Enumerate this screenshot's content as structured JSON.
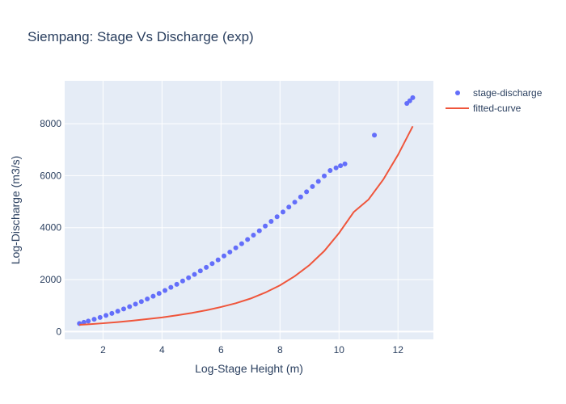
{
  "chart_data": {
    "type": "scatter",
    "title": "Siempang: Stage Vs Discharge (exp)",
    "xlabel": "Log-Stage Height (m)",
    "ylabel": "Log-Discharge (m3/s)",
    "xlim": [
      0.7,
      13.2
    ],
    "ylim": [
      -300,
      9650
    ],
    "xticks": [
      2,
      4,
      6,
      8,
      10,
      12
    ],
    "yticks": [
      0,
      2000,
      4000,
      6000,
      8000
    ],
    "grid": true,
    "legend_position": "top-right",
    "series": [
      {
        "name": "stage-discharge",
        "kind": "scatter",
        "color": "#636efa",
        "x": [
          1.2,
          1.35,
          1.5,
          1.7,
          1.9,
          2.1,
          2.3,
          2.5,
          2.7,
          2.9,
          3.1,
          3.3,
          3.5,
          3.7,
          3.9,
          4.1,
          4.3,
          4.5,
          4.7,
          4.9,
          5.1,
          5.3,
          5.5,
          5.7,
          5.9,
          6.1,
          6.3,
          6.5,
          6.7,
          6.9,
          7.1,
          7.3,
          7.5,
          7.7,
          7.9,
          8.1,
          8.3,
          8.5,
          8.7,
          8.9,
          9.1,
          9.3,
          9.5,
          9.7,
          9.9,
          10.05,
          10.2,
          11.2,
          12.3,
          12.4,
          12.5
        ],
        "y": [
          310,
          355,
          405,
          475,
          545,
          620,
          700,
          785,
          870,
          960,
          1055,
          1155,
          1255,
          1360,
          1470,
          1580,
          1700,
          1820,
          1945,
          2070,
          2200,
          2335,
          2470,
          2615,
          2760,
          2910,
          3060,
          3220,
          3380,
          3545,
          3710,
          3880,
          4060,
          4240,
          4420,
          4600,
          4790,
          4980,
          5180,
          5380,
          5580,
          5780,
          5990,
          6200,
          6300,
          6380,
          6450,
          7560,
          8780,
          8880,
          9000
        ]
      },
      {
        "name": "fitted-curve",
        "kind": "line",
        "color": "#ef553b",
        "x": [
          1.2,
          1.5,
          2.0,
          2.5,
          3.0,
          3.5,
          4.0,
          4.5,
          5.0,
          5.5,
          6.0,
          6.5,
          7.0,
          7.5,
          8.0,
          8.5,
          9.0,
          9.5,
          10.0,
          10.5,
          11.0,
          11.5,
          12.0,
          12.5
        ],
        "y": [
          260,
          280,
          320,
          365,
          420,
          480,
          545,
          625,
          715,
          820,
          945,
          1090,
          1270,
          1500,
          1780,
          2130,
          2560,
          3100,
          3790,
          4600,
          5080,
          5850,
          6800,
          7900
        ]
      }
    ]
  }
}
